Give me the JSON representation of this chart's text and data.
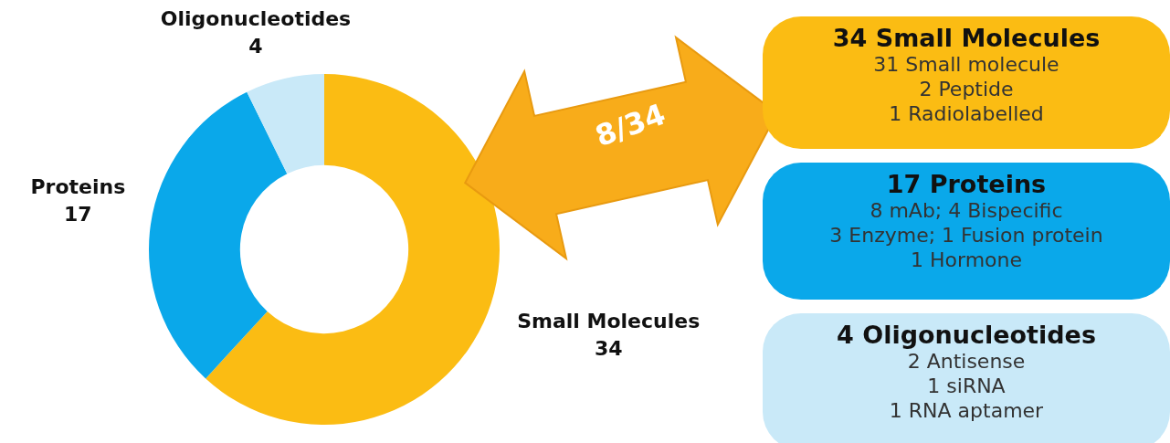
{
  "chart_data": [
    {
      "type": "donut",
      "categories": [
        "Small Molecules",
        "Proteins",
        "Oligonucleotides"
      ],
      "values": [
        34,
        17,
        4
      ],
      "colors": [
        "#fbbc13",
        "#0aa8ea",
        "#c9e9f8"
      ],
      "data_labels": true,
      "legend": false,
      "annotations": [
        "8/34"
      ]
    },
    {
      "type": "other",
      "title": "34 Small Molecules",
      "color": "#fbbc13",
      "annotations": [
        "31 Small molecule",
        "2 Peptide",
        "1 Radiolabelled"
      ]
    },
    {
      "type": "other",
      "title": "17 Proteins",
      "color": "#0aa8ea",
      "annotations": [
        "8 mAb; 4 Bispecific",
        "3 Enzyme; 1 Fusion protein",
        "1 Hormone"
      ]
    },
    {
      "type": "other",
      "title": "4 Oligonucleotides",
      "color": "#c9e9f8",
      "annotations": [
        "2 Antisense",
        "1 siRNA",
        "1 RNA aptamer"
      ]
    }
  ]
}
